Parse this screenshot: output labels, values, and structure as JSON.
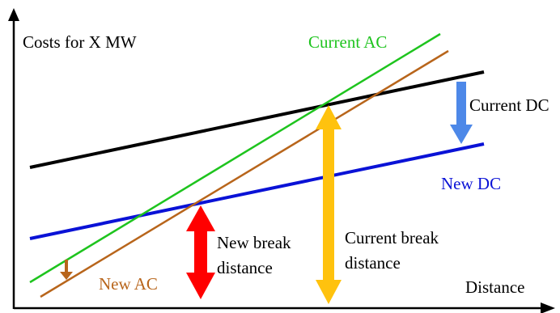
{
  "axes": {
    "y_label": "Costs for X MW",
    "x_label": "Distance"
  },
  "lines": {
    "current_ac": {
      "label": "Current AC",
      "color": "#1ec41e"
    },
    "new_ac": {
      "label": "New AC",
      "color": "#b8651b"
    },
    "current_dc": {
      "label": "Current DC",
      "color": "#000000"
    },
    "new_dc": {
      "label": "New DC",
      "color": "#0a12d6"
    }
  },
  "arrows": {
    "dc_shift": {
      "color": "#4d88e8"
    },
    "ac_shift": {
      "color": "#b8651b"
    },
    "new_break": {
      "label_line1": "New break",
      "label_line2": "distance",
      "color": "#ff0000"
    },
    "current_break": {
      "label_line1": "Current break",
      "label_line2": "distance",
      "color": "#ffc20e"
    }
  }
}
